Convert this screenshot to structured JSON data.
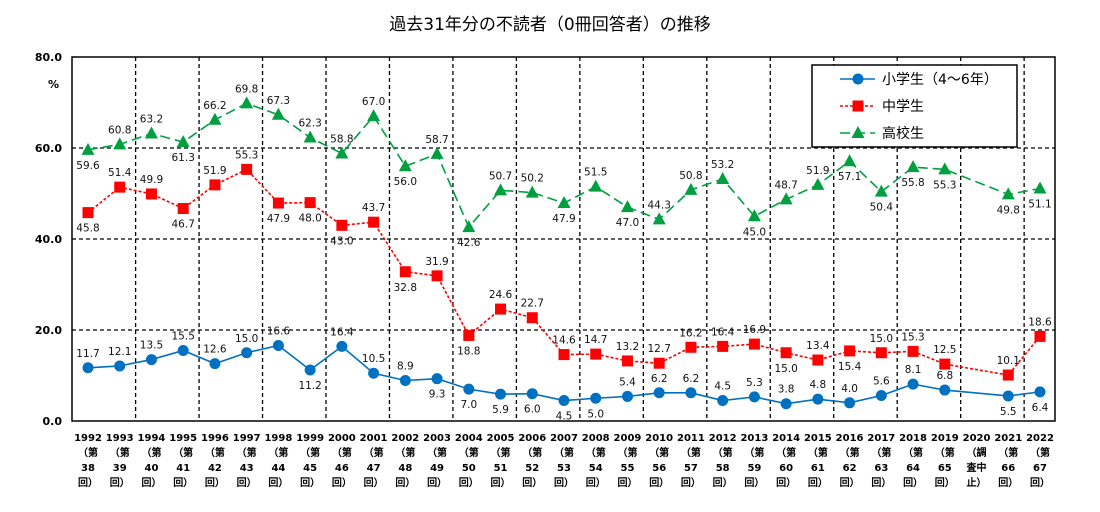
{
  "chart_data": {
    "type": "line",
    "title": "過去31年分の不読者（0冊回答者）の推移",
    "ylabel": "%",
    "ylim": [
      0,
      80
    ],
    "yticks": [
      "0.0",
      "20.0",
      "40.0",
      "60.0",
      "80.0"
    ],
    "grid": true,
    "legend": "top-right",
    "categories": [
      [
        "1992",
        "（第",
        "38",
        "回）"
      ],
      [
        "1993",
        "（第",
        "39",
        "回）"
      ],
      [
        "1994",
        "（第",
        "40",
        "回）"
      ],
      [
        "1995",
        "（第",
        "41",
        "回）"
      ],
      [
        "1996",
        "（第",
        "42",
        "回）"
      ],
      [
        "1997",
        "（第",
        "43",
        "回）"
      ],
      [
        "1998",
        "（第",
        "44",
        "回）"
      ],
      [
        "1999",
        "（第",
        "45",
        "回）"
      ],
      [
        "2000",
        "（第",
        "46",
        "回）"
      ],
      [
        "2001",
        "（第",
        "47",
        "回）"
      ],
      [
        "2002",
        "（第",
        "48",
        "回）"
      ],
      [
        "2003",
        "（第",
        "49",
        "回）"
      ],
      [
        "2004",
        "（第",
        "50",
        "回）"
      ],
      [
        "2005",
        "（第",
        "51",
        "回）"
      ],
      [
        "2006",
        "（第",
        "52",
        "回）"
      ],
      [
        "2007",
        "（第",
        "53",
        "回）"
      ],
      [
        "2008",
        "（第",
        "54",
        "回）"
      ],
      [
        "2009",
        "（第",
        "55",
        "回）"
      ],
      [
        "2010",
        "（第",
        "56",
        "回）"
      ],
      [
        "2011",
        "（第",
        "57",
        "回）"
      ],
      [
        "2012",
        "（第",
        "58",
        "回）"
      ],
      [
        "2013",
        "（第",
        "59",
        "回）"
      ],
      [
        "2014",
        "（第",
        "60",
        "回）"
      ],
      [
        "2015",
        "（第",
        "61",
        "回）"
      ],
      [
        "2016",
        "（第",
        "62",
        "回）"
      ],
      [
        "2017",
        "（第",
        "63",
        "回）"
      ],
      [
        "2018",
        "（第",
        "64",
        "回）"
      ],
      [
        "2019",
        "（第",
        "65",
        "回）"
      ],
      [
        "2020",
        "（調",
        "査中",
        "止）"
      ],
      [
        "2021",
        "（第",
        "66",
        "回）"
      ],
      [
        "2022",
        "（第",
        "67",
        "回）"
      ]
    ],
    "series": [
      {
        "name": "小学生（4～6年）",
        "color": "#0070C0",
        "marker": "circle",
        "line": "solid",
        "values": [
          11.7,
          12.1,
          13.5,
          15.5,
          12.6,
          15.0,
          16.6,
          11.2,
          16.4,
          10.5,
          8.9,
          9.3,
          7.0,
          5.9,
          6.0,
          4.5,
          5.0,
          5.4,
          6.2,
          6.2,
          4.5,
          5.3,
          3.8,
          4.8,
          4.0,
          5.6,
          8.1,
          6.8,
          null,
          5.5,
          6.4
        ]
      },
      {
        "name": "中学生",
        "color": "#FF0000",
        "marker": "square",
        "line": "dotted",
        "values": [
          45.8,
          51.4,
          49.9,
          46.7,
          51.9,
          55.3,
          47.9,
          48.0,
          43.0,
          43.7,
          32.8,
          31.9,
          18.8,
          24.6,
          22.7,
          14.6,
          14.7,
          13.2,
          12.7,
          16.2,
          16.4,
          16.9,
          15.0,
          13.4,
          15.4,
          15.0,
          15.3,
          12.5,
          null,
          10.1,
          18.6
        ]
      },
      {
        "name": "高校生",
        "color": "#00A040",
        "marker": "triangle",
        "line": "dashed",
        "values": [
          59.6,
          60.8,
          63.2,
          61.3,
          66.2,
          69.8,
          67.3,
          62.3,
          58.8,
          67.0,
          56.0,
          58.7,
          42.6,
          50.7,
          50.2,
          47.9,
          51.5,
          47.0,
          44.3,
          50.8,
          53.2,
          45.0,
          48.7,
          51.9,
          57.1,
          50.4,
          55.8,
          55.3,
          null,
          49.8,
          51.1
        ]
      }
    ]
  }
}
